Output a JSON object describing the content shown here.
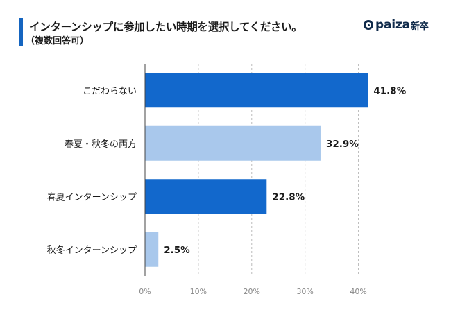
{
  "header": {
    "title": "インターンシップに参加したい時期を選択してください。",
    "subtitle": "（複数回答可）"
  },
  "logo": {
    "brand": "paiza",
    "sub": "新卒",
    "icon": "paiza-logo-icon"
  },
  "colors": {
    "accent": "#1565c0",
    "bar_dark": "#1268cc",
    "bar_light": "#a9c8ec",
    "grid": "#bbbbbb"
  },
  "chart_data": {
    "type": "bar",
    "orientation": "horizontal",
    "categories": [
      "こだわらない",
      "春夏・秋冬の両方",
      "春夏インターンシップ",
      "秋冬インターンシップ"
    ],
    "values": [
      41.8,
      32.9,
      22.8,
      2.5
    ],
    "value_labels": [
      "41.8%",
      "32.9%",
      "22.8%",
      "2.5%"
    ],
    "bar_styles": [
      "dark",
      "light",
      "dark",
      "light"
    ],
    "ticks": [
      0,
      10,
      20,
      30,
      40
    ],
    "tick_labels": [
      "0%",
      "10%",
      "20%",
      "30%",
      "40%"
    ],
    "xlim": [
      0,
      45
    ],
    "grid": true,
    "title": "インターンシップに参加したい時期を選択してください。",
    "xlabel": "",
    "ylabel": ""
  }
}
